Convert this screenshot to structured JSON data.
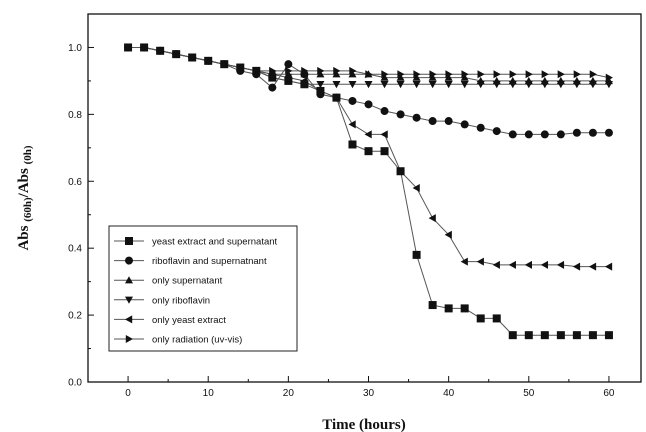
{
  "chart_data": {
    "type": "line",
    "xlabel": "Time (hours)",
    "ylabel": {
      "main1": "Abs ",
      "sub1": "(60h)",
      "main2": "/Abs ",
      "sub2": "(0h)"
    },
    "xlim": [
      -5,
      64
    ],
    "ylim": [
      0,
      1.1
    ],
    "x_ticks": [
      0,
      10,
      20,
      30,
      40,
      50,
      60
    ],
    "y_ticks": [
      0.0,
      0.2,
      0.4,
      0.6,
      0.8,
      1.0
    ],
    "legend_position": "bottom-left",
    "grid": false,
    "series": [
      {
        "name": "yeast extract and supernatant",
        "marker": "square",
        "x": [
          0,
          2,
          4,
          6,
          8,
          10,
          12,
          14,
          16,
          18,
          20,
          22,
          24,
          26,
          28,
          30,
          32,
          34,
          36,
          38,
          40,
          42,
          44,
          46,
          48,
          50,
          52,
          54,
          56,
          58,
          60
        ],
        "y": [
          1.0,
          1.0,
          0.99,
          0.98,
          0.97,
          0.96,
          0.95,
          0.94,
          0.93,
          0.91,
          0.9,
          0.89,
          0.87,
          0.85,
          0.71,
          0.69,
          0.69,
          0.63,
          0.38,
          0.23,
          0.22,
          0.22,
          0.19,
          0.19,
          0.14,
          0.14,
          0.14,
          0.14,
          0.14,
          0.14,
          0.14
        ]
      },
      {
        "name": "riboflavin and supernatnant",
        "marker": "circle",
        "x": [
          0,
          2,
          4,
          6,
          8,
          10,
          12,
          14,
          16,
          18,
          20,
          22,
          24,
          26,
          28,
          30,
          32,
          34,
          36,
          38,
          40,
          42,
          44,
          46,
          48,
          50,
          52,
          54,
          56,
          58,
          60
        ],
        "y": [
          1.0,
          1.0,
          0.99,
          0.98,
          0.97,
          0.96,
          0.95,
          0.93,
          0.92,
          0.88,
          0.95,
          0.92,
          0.86,
          0.85,
          0.84,
          0.83,
          0.81,
          0.8,
          0.79,
          0.78,
          0.78,
          0.77,
          0.76,
          0.75,
          0.74,
          0.74,
          0.74,
          0.74,
          0.745,
          0.745,
          0.745
        ]
      },
      {
        "name": "only supernatant",
        "marker": "triangle-up",
        "x": [
          0,
          2,
          4,
          6,
          8,
          10,
          12,
          14,
          16,
          18,
          20,
          22,
          24,
          26,
          28,
          30,
          32,
          34,
          36,
          38,
          40,
          42,
          44,
          46,
          48,
          50,
          52,
          54,
          56,
          58,
          60
        ],
        "y": [
          1.0,
          1.0,
          0.99,
          0.98,
          0.97,
          0.96,
          0.95,
          0.94,
          0.93,
          0.92,
          0.92,
          0.92,
          0.92,
          0.92,
          0.92,
          0.92,
          0.91,
          0.91,
          0.91,
          0.91,
          0.91,
          0.91,
          0.9,
          0.9,
          0.9,
          0.9,
          0.9,
          0.9,
          0.9,
          0.9,
          0.9
        ]
      },
      {
        "name": "only riboflavin",
        "marker": "triangle-down",
        "x": [
          0,
          2,
          4,
          6,
          8,
          10,
          12,
          14,
          16,
          18,
          20,
          22,
          24,
          26,
          28,
          30,
          32,
          34,
          36,
          38,
          40,
          42,
          44,
          46,
          48,
          50,
          52,
          54,
          56,
          58,
          60
        ],
        "y": [
          1.0,
          1.0,
          0.99,
          0.98,
          0.97,
          0.96,
          0.95,
          0.94,
          0.93,
          0.91,
          0.9,
          0.89,
          0.89,
          0.89,
          0.89,
          0.89,
          0.89,
          0.89,
          0.89,
          0.89,
          0.89,
          0.89,
          0.89,
          0.89,
          0.89,
          0.89,
          0.89,
          0.89,
          0.89,
          0.89,
          0.89
        ]
      },
      {
        "name": "only yeast extract",
        "marker": "triangle-left",
        "x": [
          0,
          2,
          4,
          6,
          8,
          10,
          12,
          14,
          16,
          18,
          20,
          22,
          24,
          26,
          28,
          30,
          32,
          34,
          36,
          38,
          40,
          42,
          44,
          46,
          48,
          50,
          52,
          54,
          56,
          58,
          60
        ],
        "y": [
          1.0,
          1.0,
          0.99,
          0.98,
          0.97,
          0.96,
          0.95,
          0.94,
          0.93,
          0.92,
          0.91,
          0.9,
          0.87,
          0.85,
          0.77,
          0.74,
          0.74,
          0.63,
          0.58,
          0.49,
          0.44,
          0.36,
          0.36,
          0.35,
          0.35,
          0.35,
          0.35,
          0.35,
          0.345,
          0.345,
          0.345
        ]
      },
      {
        "name": "only radiation (uv-vis)",
        "marker": "triangle-right",
        "x": [
          0,
          2,
          4,
          6,
          8,
          10,
          12,
          14,
          16,
          18,
          20,
          22,
          24,
          26,
          28,
          30,
          32,
          34,
          36,
          38,
          40,
          42,
          44,
          46,
          48,
          50,
          52,
          54,
          56,
          58,
          60
        ],
        "y": [
          1.0,
          1.0,
          0.99,
          0.98,
          0.97,
          0.96,
          0.95,
          0.94,
          0.93,
          0.93,
          0.93,
          0.93,
          0.93,
          0.93,
          0.93,
          0.92,
          0.92,
          0.92,
          0.92,
          0.92,
          0.92,
          0.92,
          0.92,
          0.92,
          0.92,
          0.92,
          0.92,
          0.92,
          0.92,
          0.92,
          0.91
        ]
      }
    ]
  }
}
